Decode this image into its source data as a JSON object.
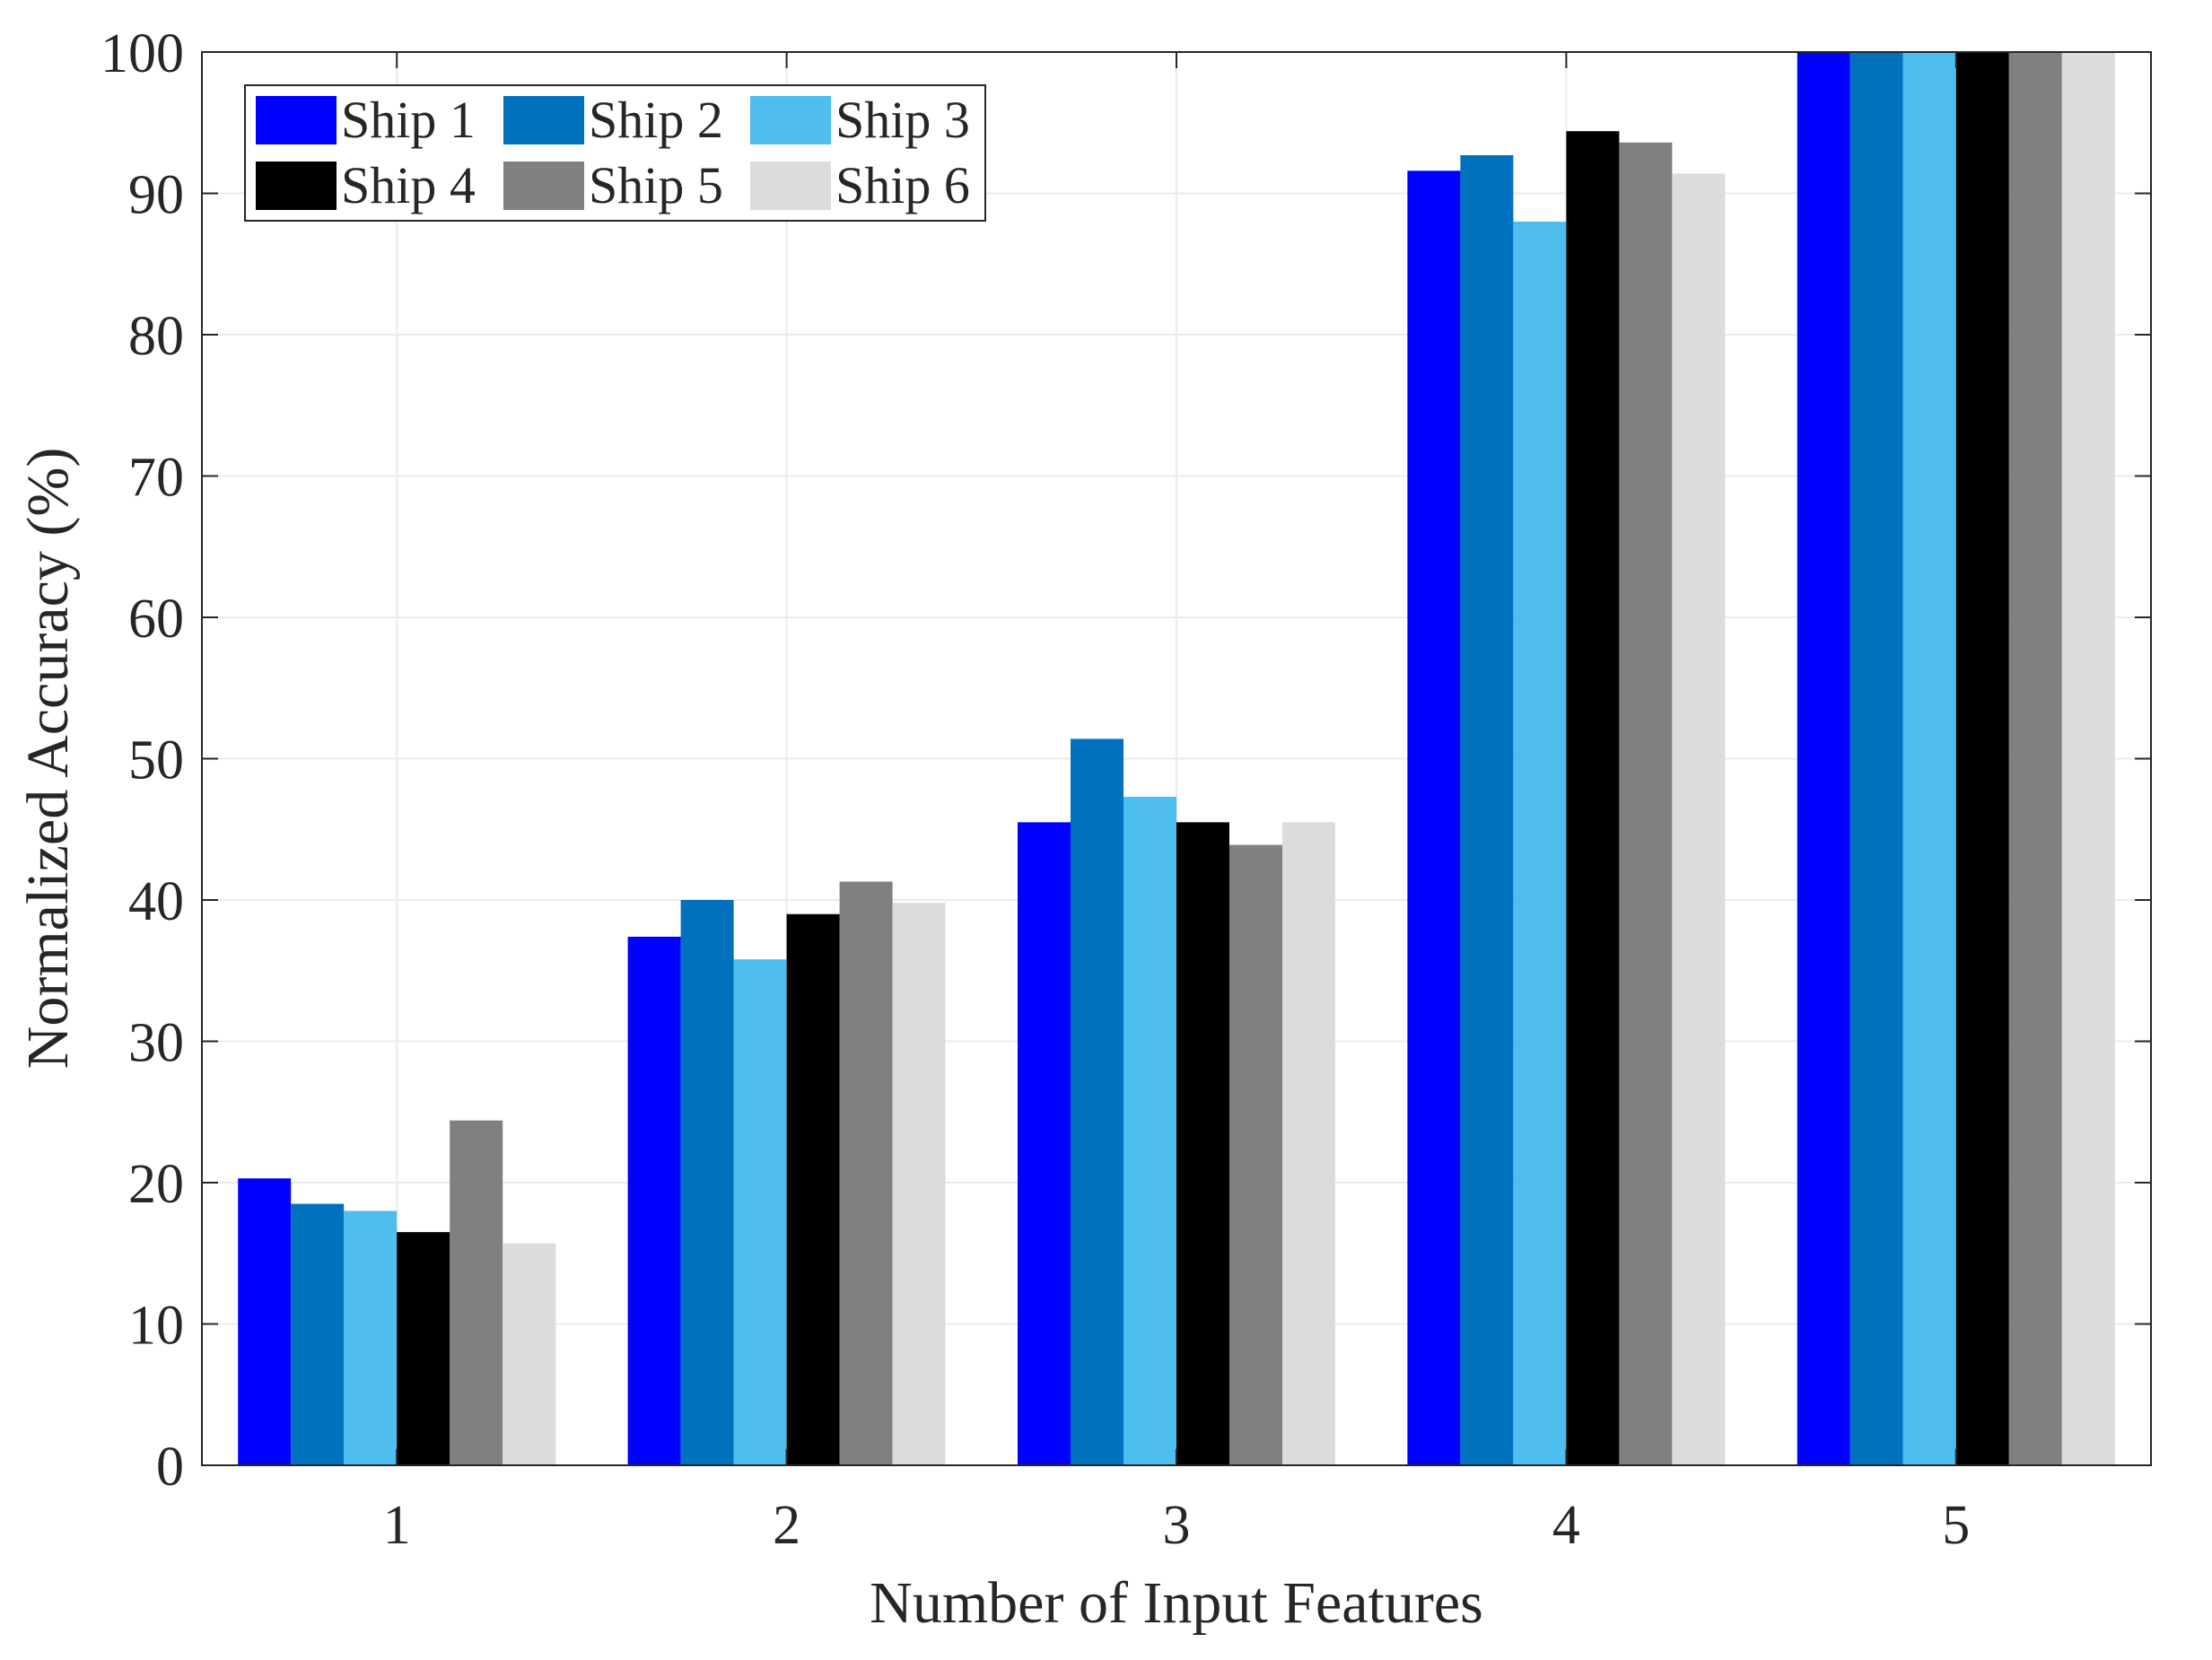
{
  "chart_data": {
    "type": "bar",
    "xlabel": "Number of Input Features",
    "ylabel": "Normalized Accuracy (%)",
    "ylim": [
      0,
      100
    ],
    "yticks": [
      "0",
      "10",
      "20",
      "30",
      "40",
      "50",
      "60",
      "70",
      "80",
      "90",
      "100"
    ],
    "categories": [
      "1",
      "2",
      "3",
      "4",
      "5"
    ],
    "grid": true,
    "legend_position": "top-left",
    "series": [
      {
        "name": "Ship 1",
        "color": "#0000FF",
        "values": [
          20.3,
          37.4,
          45.5,
          91.6,
          100
        ]
      },
      {
        "name": "Ship 2",
        "color": "#0072BD",
        "values": [
          18.5,
          40.0,
          51.4,
          92.7,
          100
        ]
      },
      {
        "name": "Ship 3",
        "color": "#4DBEEE",
        "values": [
          18.0,
          35.8,
          47.3,
          88.0,
          100
        ]
      },
      {
        "name": "Ship 4",
        "color": "#000000",
        "values": [
          16.5,
          39.0,
          45.5,
          94.4,
          100
        ]
      },
      {
        "name": "Ship 5",
        "color": "#808080",
        "values": [
          24.4,
          41.3,
          43.9,
          93.6,
          100
        ]
      },
      {
        "name": "Ship 6",
        "color": "#DCDCDC",
        "values": [
          15.7,
          39.8,
          45.5,
          91.4,
          100
        ]
      }
    ]
  }
}
